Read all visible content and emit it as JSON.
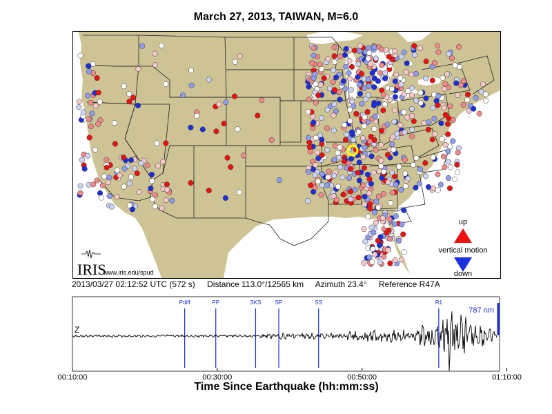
{
  "title": "March 27, 2013, TAIWAN, M=6.0",
  "info": {
    "timestamp": "2013/03/27 02:12:52 UTC (572 s)",
    "distance": "Distance 113.0°/12565 km",
    "azimuth": "Azimuth  23.4°",
    "reference": "Reference R47A"
  },
  "map": {
    "logo_text": "IRIS",
    "url": "www.iris.edu/spud",
    "legend_up": "up",
    "legend_title": "vertical motion",
    "legend_down": "down",
    "colors": {
      "land": "#cdc395",
      "water": "#ffffff",
      "up": "#ee1111",
      "down": "#1b2ee0",
      "reference": "#ffff00"
    }
  },
  "seismogram": {
    "channel": "Z",
    "amplitude_label": "787 nm",
    "xlabel": "Time Since Earthquake (hh:mm:ss)",
    "ticks": [
      "00:10:00",
      "00:30:00",
      "00:50:00",
      "01:10:00"
    ],
    "phases": [
      {
        "name": "Pdiff",
        "time_min": 25.5
      },
      {
        "name": "PP",
        "time_min": 29.8
      },
      {
        "name": "SKS",
        "time_min": 35.3
      },
      {
        "name": "SP",
        "time_min": 38.5
      },
      {
        "name": "SS",
        "time_min": 44.0
      },
      {
        "name": "R1",
        "time_min": 60.6
      }
    ],
    "time_range_min": [
      10,
      69
    ]
  }
}
